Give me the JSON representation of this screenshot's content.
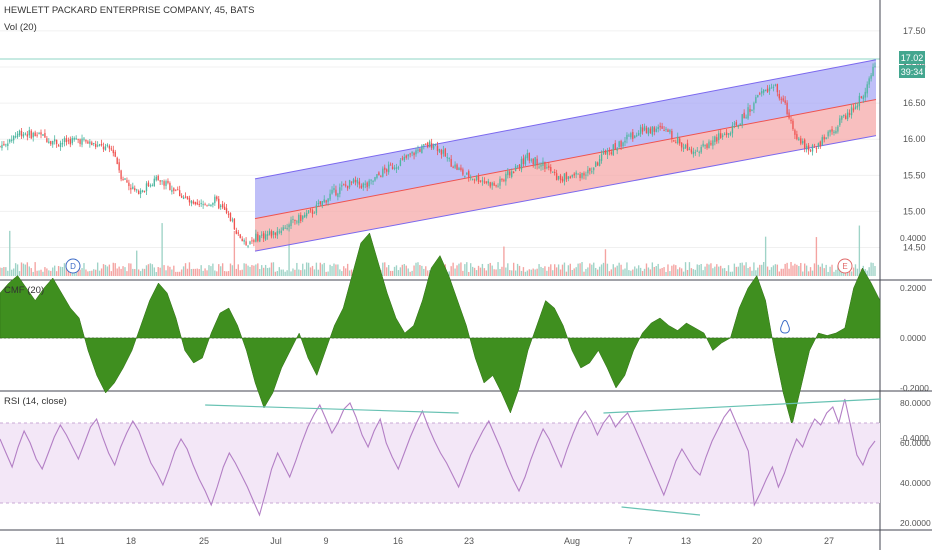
{
  "header": {
    "symbol_title": "HEWLETT PACKARD ENTERPRISE COMPANY, 45, BATS",
    "volume_label": "Vol (20)"
  },
  "price_scale": {
    "ticks": [
      "17.50",
      "17.00",
      "16.50",
      "16.00",
      "15.50",
      "15.00",
      "14.50"
    ],
    "last_price_badge": "17.02",
    "countdown_badge": "39:34"
  },
  "event_markers": {
    "dividend": "D",
    "earnings": "E"
  },
  "cmf_panel": {
    "label": "CMF (20)",
    "ticks": [
      "0.4000",
      "0.2000",
      "0.0000",
      "-0.2000",
      "-0.4000"
    ]
  },
  "rsi_panel": {
    "label": "RSI (14, close)",
    "ticks": [
      "80.0000",
      "60.0000",
      "40.0000",
      "20.0000"
    ]
  },
  "time_axis": {
    "labels": [
      "11",
      "18",
      "25",
      "Jul",
      "9",
      "16",
      "23",
      "Aug",
      "7",
      "13",
      "20",
      "27"
    ]
  },
  "colors": {
    "up": "#4db6a0",
    "down": "#ef5350",
    "volume_up": "#9fd3c7",
    "volume_down": "#f4a3a1",
    "channel_upper_fill": "#a9a9f5",
    "channel_lower_fill": "#f5a9a9",
    "channel_line": "#7b68ee",
    "cmf_fill": "#3f8f1f",
    "rsi_line": "#b37fc5",
    "rsi_band": "#f3e7f7",
    "trend_line": "#68c2b3",
    "badge_fill": "#43a68f"
  },
  "chart_data": [
    {
      "type": "candlestick",
      "title": "HEWLETT PACKARD ENTERPRISE COMPANY, 45, BATS",
      "x_labels": [
        "11",
        "18",
        "25",
        "Jul",
        "9",
        "16",
        "23",
        "Aug",
        "7",
        "13",
        "20",
        "27"
      ],
      "ylim": [
        14.3,
        17.65
      ],
      "close_trend": [
        [
          0,
          15.9
        ],
        [
          10,
          16.1
        ],
        [
          20,
          16.05
        ],
        [
          30,
          15.95
        ],
        [
          40,
          16.0
        ],
        [
          50,
          15.9
        ],
        [
          58,
          15.85
        ],
        [
          62,
          15.5
        ],
        [
          70,
          15.25
        ],
        [
          80,
          15.45
        ],
        [
          90,
          15.3
        ],
        [
          100,
          15.05
        ],
        [
          110,
          15.15
        ],
        [
          118,
          14.9
        ],
        [
          125,
          14.55
        ],
        [
          132,
          14.65
        ],
        [
          140,
          14.7
        ],
        [
          150,
          14.85
        ],
        [
          160,
          15.0
        ],
        [
          170,
          15.25
        ],
        [
          180,
          15.4
        ],
        [
          188,
          15.35
        ],
        [
          196,
          15.55
        ],
        [
          206,
          15.7
        ],
        [
          214,
          15.85
        ],
        [
          222,
          15.95
        ],
        [
          230,
          15.7
        ],
        [
          238,
          15.5
        ],
        [
          246,
          15.45
        ],
        [
          254,
          15.35
        ],
        [
          262,
          15.55
        ],
        [
          270,
          15.75
        ],
        [
          278,
          15.65
        ],
        [
          286,
          15.45
        ],
        [
          294,
          15.5
        ],
        [
          302,
          15.55
        ],
        [
          310,
          15.8
        ],
        [
          318,
          15.95
        ],
        [
          326,
          16.1
        ],
        [
          334,
          16.15
        ],
        [
          342,
          16.1
        ],
        [
          350,
          15.9
        ],
        [
          358,
          15.85
        ],
        [
          366,
          16.0
        ],
        [
          374,
          16.1
        ],
        [
          382,
          16.35
        ],
        [
          390,
          16.65
        ],
        [
          396,
          16.75
        ],
        [
          402,
          16.45
        ],
        [
          408,
          16.05
        ],
        [
          414,
          15.85
        ],
        [
          420,
          15.95
        ],
        [
          426,
          16.1
        ],
        [
          432,
          16.3
        ],
        [
          438,
          16.45
        ],
        [
          444,
          16.75
        ],
        [
          448,
          17.02
        ]
      ],
      "volume_shape": "low baseline volume with spikes near 14, Jul, mid-Aug and late Aug",
      "regression_channel": {
        "upper_start": 15.45,
        "upper_end": 17.1,
        "mid_start": 14.9,
        "mid_end": 16.55,
        "lower_start": 14.45,
        "lower_end": 16.05
      },
      "last_price": 17.02
    },
    {
      "type": "area",
      "title": "CMF (20)",
      "ylim": [
        -0.45,
        0.45
      ],
      "values": [
        0.18,
        0.22,
        0.25,
        0.2,
        0.15,
        0.2,
        0.24,
        0.18,
        0.12,
        0.08,
        -0.05,
        -0.15,
        -0.22,
        -0.18,
        -0.12,
        -0.05,
        0.05,
        0.15,
        0.22,
        0.18,
        0.08,
        -0.05,
        -0.1,
        -0.08,
        0.02,
        0.1,
        0.12,
        0.05,
        -0.05,
        -0.18,
        -0.28,
        -0.22,
        -0.12,
        -0.05,
        0.02,
        -0.08,
        -0.15,
        -0.05,
        0.05,
        0.12,
        0.25,
        0.38,
        0.42,
        0.3,
        0.18,
        0.08,
        0.02,
        0.05,
        0.15,
        0.28,
        0.33,
        0.25,
        0.15,
        0.05,
        -0.08,
        -0.18,
        -0.15,
        -0.22,
        -0.3,
        -0.2,
        -0.05,
        0.05,
        0.15,
        0.12,
        0.05,
        -0.05,
        -0.12,
        -0.1,
        -0.05,
        -0.12,
        -0.2,
        -0.15,
        -0.05,
        0.02,
        0.06,
        0.08,
        0.05,
        0.03,
        0.06,
        0.04,
        0.02,
        -0.05,
        -0.02,
        0.0,
        0.12,
        0.2,
        0.25,
        0.15,
        -0.05,
        -0.22,
        -0.35,
        -0.2,
        -0.05,
        0.02,
        0.01,
        0.02,
        0.04,
        0.2,
        0.28,
        0.22,
        0.15
      ]
    },
    {
      "type": "line",
      "title": "RSI (14, close)",
      "ylim": [
        15,
        85
      ],
      "band": [
        30,
        70
      ],
      "values": [
        62,
        55,
        48,
        58,
        66,
        60,
        52,
        47,
        55,
        63,
        69,
        64,
        58,
        52,
        60,
        68,
        72,
        63,
        55,
        49,
        58,
        65,
        71,
        66,
        58,
        50,
        45,
        39,
        47,
        56,
        62,
        57,
        49,
        42,
        36,
        29,
        38,
        48,
        55,
        50,
        44,
        38,
        31,
        24,
        35,
        47,
        55,
        49,
        43,
        51,
        60,
        68,
        74,
        79,
        72,
        65,
        70,
        77,
        80,
        73,
        64,
        58,
        66,
        72,
        60,
        53,
        47,
        55,
        63,
        70,
        76,
        68,
        61,
        55,
        50,
        44,
        38,
        46,
        54,
        60,
        66,
        71,
        64,
        57,
        49,
        42,
        36,
        43,
        52,
        60,
        67,
        62,
        55,
        48,
        57,
        65,
        72,
        76,
        71,
        64,
        70,
        74,
        68,
        72,
        75,
        69,
        62,
        55,
        48,
        41,
        34,
        42,
        51,
        57,
        52,
        47,
        44,
        53,
        61,
        67,
        73,
        77,
        70,
        63,
        56,
        29,
        35,
        42,
        48,
        38,
        45,
        54,
        62,
        58,
        66,
        72,
        69,
        75,
        78,
        70,
        82,
        68,
        54,
        49,
        57,
        61
      ],
      "trendlines": [
        {
          "from": [
            34,
            79
          ],
          "to": [
            76,
            75
          ]
        },
        {
          "from": [
            100,
            75
          ],
          "to": [
            146,
            82
          ]
        },
        {
          "from": [
            103,
            28
          ],
          "to": [
            116,
            24
          ]
        }
      ]
    }
  ]
}
